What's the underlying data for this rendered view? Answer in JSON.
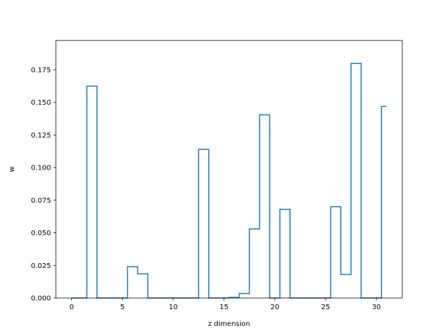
{
  "chart_data": {
    "type": "line",
    "drawstyle": "steps-mid",
    "xlabel": "z dimension",
    "ylabel": "w",
    "xlim": [
      -1.55,
      32.55
    ],
    "ylim": [
      0,
      0.1975
    ],
    "xticks": [
      0,
      5,
      10,
      15,
      20,
      25,
      30
    ],
    "xtick_labels": [
      "0",
      "5",
      "10",
      "15",
      "20",
      "25",
      "30"
    ],
    "yticks": [
      0.0,
      0.025,
      0.05,
      0.075,
      0.1,
      0.125,
      0.15,
      0.175
    ],
    "ytick_labels": [
      "0.000",
      "0.025",
      "0.050",
      "0.075",
      "0.100",
      "0.125",
      "0.150",
      "0.175"
    ],
    "grid": false,
    "line_color": "#1f77b4",
    "series": [
      {
        "x": [
          0,
          1,
          2,
          3,
          4,
          5,
          6,
          7,
          8,
          9,
          10,
          11,
          12,
          13,
          14,
          15,
          16,
          17,
          18,
          19,
          20,
          21,
          22,
          23,
          24,
          25,
          26,
          27,
          28,
          29,
          30,
          31
        ],
        "values": [
          0,
          0,
          0.1625,
          0,
          0,
          0,
          0.024,
          0.0185,
          0,
          0,
          0,
          0,
          0,
          0.114,
          0,
          0,
          0.0005,
          0.0035,
          0.053,
          0.1405,
          0,
          0.068,
          0,
          0,
          0,
          0,
          0.07,
          0.018,
          0.18,
          0,
          0,
          0.147
        ]
      }
    ]
  }
}
